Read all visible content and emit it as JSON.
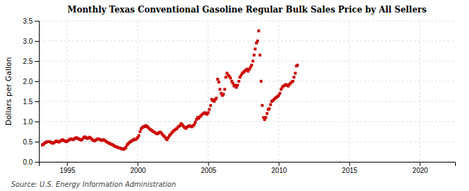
{
  "chart_data": {
    "type": "scatter",
    "title": "Monthly Texas Conventional Gasoline Regular Bulk Sales Price by All Sellers",
    "ylabel": "Dollars per Gallon",
    "source": "Source: U.S. Energy Information Administration",
    "color": "#cc0000",
    "marker": "square",
    "grid": true,
    "xlim": [
      1993.0,
      2022.5
    ],
    "ylim": [
      0.0,
      3.5
    ],
    "xticks": [
      1995,
      2000,
      2005,
      2010,
      2015,
      2020
    ],
    "yticks": [
      {
        "value": 0.0,
        "label": "0.0"
      },
      0.5,
      {
        "value": 1.0,
        "label": "1.0"
      },
      1.5,
      {
        "value": 2.0,
        "label": "2.0"
      },
      2.5,
      {
        "value": 3.0,
        "label": "3.0"
      },
      3.5
    ],
    "x": [
      1993.25,
      1993.33,
      1993.42,
      1993.5,
      1993.58,
      1993.67,
      1993.75,
      1993.83,
      1993.92,
      1994.0,
      1994.08,
      1994.17,
      1994.25,
      1994.33,
      1994.42,
      1994.5,
      1994.58,
      1994.67,
      1994.75,
      1994.83,
      1994.92,
      1995.0,
      1995.08,
      1995.17,
      1995.25,
      1995.33,
      1995.42,
      1995.5,
      1995.58,
      1995.67,
      1995.75,
      1995.83,
      1995.92,
      1996.0,
      1996.08,
      1996.17,
      1996.25,
      1996.33,
      1996.42,
      1996.5,
      1996.58,
      1996.67,
      1996.75,
      1996.83,
      1996.92,
      1997.0,
      1997.08,
      1997.17,
      1997.25,
      1997.33,
      1997.42,
      1997.5,
      1997.58,
      1997.67,
      1997.75,
      1997.83,
      1997.92,
      1998.0,
      1998.08,
      1998.17,
      1998.25,
      1998.33,
      1998.42,
      1998.5,
      1998.58,
      1998.67,
      1998.75,
      1998.83,
      1998.92,
      1999.0,
      1999.08,
      1999.17,
      1999.25,
      1999.33,
      1999.42,
      1999.5,
      1999.58,
      1999.67,
      1999.75,
      1999.83,
      1999.92,
      2000.0,
      2000.08,
      2000.17,
      2000.25,
      2000.33,
      2000.42,
      2000.5,
      2000.58,
      2000.67,
      2000.75,
      2000.83,
      2000.92,
      2001.0,
      2001.08,
      2001.17,
      2001.25,
      2001.33,
      2001.42,
      2001.5,
      2001.58,
      2001.67,
      2001.75,
      2001.83,
      2001.92,
      2002.0,
      2002.08,
      2002.17,
      2002.25,
      2002.33,
      2002.42,
      2002.5,
      2002.58,
      2002.67,
      2002.75,
      2002.83,
      2002.92,
      2003.0,
      2003.08,
      2003.17,
      2003.25,
      2003.33,
      2003.42,
      2003.5,
      2003.58,
      2003.67,
      2003.75,
      2003.83,
      2003.92,
      2004.0,
      2004.08,
      2004.17,
      2004.25,
      2004.33,
      2004.42,
      2004.5,
      2004.58,
      2004.67,
      2004.75,
      2004.83,
      2004.92,
      2005.0,
      2005.08,
      2005.17,
      2005.25,
      2005.33,
      2005.42,
      2005.5,
      2005.58,
      2005.67,
      2005.75,
      2005.83,
      2005.92,
      2006.0,
      2006.08,
      2006.17,
      2006.25,
      2006.33,
      2006.42,
      2006.5,
      2006.58,
      2006.67,
      2006.75,
      2006.83,
      2006.92,
      2007.0,
      2007.08,
      2007.17,
      2007.25,
      2007.33,
      2007.42,
      2007.5,
      2007.58,
      2007.67,
      2007.75,
      2007.83,
      2007.92,
      2008.0,
      2008.08,
      2008.17,
      2008.25,
      2008.33,
      2008.42,
      2008.5,
      2008.58,
      2008.67,
      2008.75,
      2008.83,
      2008.92,
      2009.0,
      2009.08,
      2009.17,
      2009.25,
      2009.33,
      2009.42,
      2009.5,
      2009.58,
      2009.67,
      2009.75,
      2009.83,
      2009.92,
      2010.0,
      2010.08,
      2010.17,
      2010.25,
      2010.33,
      2010.42,
      2010.5,
      2010.58,
      2010.67,
      2010.75,
      2010.83,
      2010.92,
      2011.0,
      2011.08,
      2011.17,
      2011.25,
      2011.33
    ],
    "values": [
      0.42,
      0.44,
      0.47,
      0.48,
      0.5,
      0.5,
      0.5,
      0.49,
      0.47,
      0.46,
      0.48,
      0.5,
      0.52,
      0.5,
      0.49,
      0.51,
      0.53,
      0.55,
      0.53,
      0.52,
      0.5,
      0.51,
      0.53,
      0.55,
      0.57,
      0.56,
      0.55,
      0.57,
      0.59,
      0.6,
      0.58,
      0.57,
      0.55,
      0.54,
      0.56,
      0.6,
      0.62,
      0.6,
      0.58,
      0.59,
      0.61,
      0.59,
      0.56,
      0.54,
      0.52,
      0.53,
      0.55,
      0.57,
      0.57,
      0.55,
      0.53,
      0.54,
      0.55,
      0.53,
      0.51,
      0.49,
      0.47,
      0.46,
      0.44,
      0.43,
      0.42,
      0.4,
      0.38,
      0.37,
      0.36,
      0.35,
      0.34,
      0.33,
      0.32,
      0.31,
      0.33,
      0.36,
      0.42,
      0.45,
      0.48,
      0.5,
      0.52,
      0.54,
      0.56,
      0.55,
      0.57,
      0.6,
      0.65,
      0.75,
      0.82,
      0.85,
      0.88,
      0.87,
      0.9,
      0.88,
      0.85,
      0.82,
      0.8,
      0.78,
      0.76,
      0.74,
      0.72,
      0.7,
      0.7,
      0.72,
      0.74,
      0.72,
      0.68,
      0.65,
      0.62,
      0.58,
      0.55,
      0.6,
      0.65,
      0.68,
      0.72,
      0.75,
      0.78,
      0.8,
      0.82,
      0.85,
      0.88,
      0.9,
      0.95,
      0.92,
      0.88,
      0.85,
      0.83,
      0.86,
      0.88,
      0.9,
      0.88,
      0.87,
      0.89,
      0.92,
      0.98,
      1.05,
      1.1,
      1.08,
      1.12,
      1.15,
      1.18,
      1.2,
      1.22,
      1.2,
      1.18,
      1.22,
      1.3,
      1.4,
      1.55,
      1.52,
      1.5,
      1.55,
      1.58,
      2.05,
      1.98,
      1.8,
      1.7,
      1.65,
      1.68,
      1.8,
      2.1,
      2.2,
      2.15,
      2.12,
      2.08,
      2.0,
      1.95,
      1.88,
      1.9,
      1.85,
      1.9,
      2.0,
      2.1,
      2.15,
      2.2,
      2.22,
      2.25,
      2.28,
      2.3,
      2.25,
      2.3,
      2.35,
      2.4,
      2.5,
      2.65,
      2.8,
      2.95,
      3.0,
      3.25,
      2.65,
      2.0,
      1.4,
      1.1,
      1.05,
      1.1,
      1.2,
      1.3,
      1.32,
      1.42,
      1.5,
      1.52,
      1.55,
      1.58,
      1.6,
      1.62,
      1.65,
      1.7,
      1.8,
      1.85,
      1.88,
      1.9,
      1.92,
      1.9,
      1.88,
      1.92,
      1.95,
      1.98,
      2.0,
      2.1,
      2.2,
      2.38,
      2.4
    ]
  }
}
